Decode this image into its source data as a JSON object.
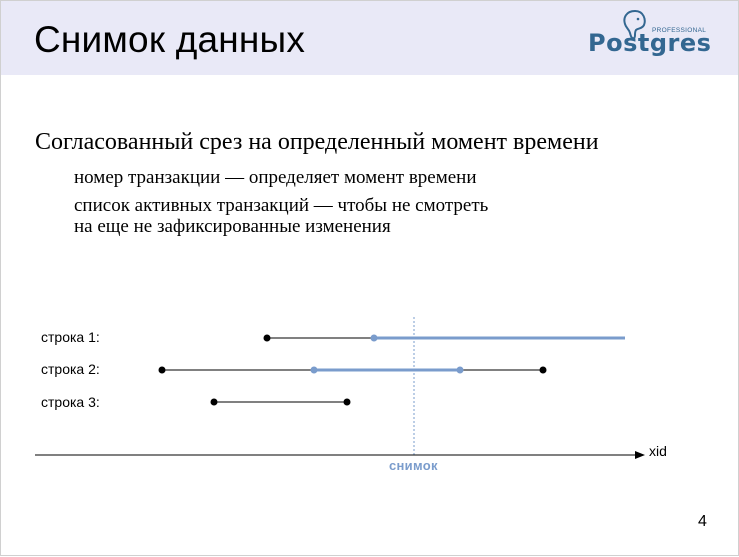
{
  "header": {
    "title": "Снимок данных",
    "logo": {
      "wordmark": "Postgres",
      "subtitle": "PROFESSIONAL",
      "icon": "elephant-icon",
      "color": "#336791"
    },
    "background": "#e9e9f7"
  },
  "content": {
    "heading": "Согласованный срез на определенный момент времени",
    "bullets": [
      {
        "line1": "номер транзакции — определяет момент времени",
        "line2": ""
      },
      {
        "line1": "список активных транзакций — чтобы не смотреть",
        "line2": "на еще не зафиксированные изменения"
      }
    ]
  },
  "diagram": {
    "rows": [
      {
        "label": "строка 1:"
      },
      {
        "label": "строка 2:"
      },
      {
        "label": "строка 3:"
      }
    ],
    "axis_label": "xid",
    "snapshot_label": "снимок",
    "colors": {
      "line": "#000000",
      "visible": "#7a9ccc",
      "snapshot": "#7a9ccc"
    }
  },
  "page_number": "4"
}
